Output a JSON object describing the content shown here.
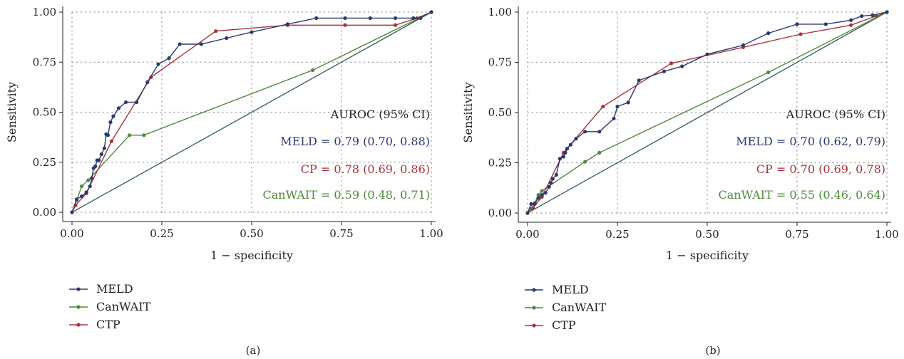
{
  "colors": {
    "MELD": "#2b3a6e",
    "CanWAIT": "#4f8a3a",
    "CTP": "#a8343a",
    "diagonal": "#2f5f5a",
    "grid": "#9a9a9a",
    "axis": "#222222"
  },
  "chart_data": [
    {
      "type": "line",
      "panel_label": "(a)",
      "xlabel": "1 − specificity",
      "ylabel": "Sensitivity",
      "xlim": [
        0,
        1
      ],
      "ylim": [
        0,
        1
      ],
      "xticks": [
        "0.00",
        "0.25",
        "0.50",
        "0.75",
        "1.00"
      ],
      "yticks": [
        "0.00",
        "0.25",
        "0.50",
        "0.75",
        "1.00"
      ],
      "grid": true,
      "reference_line": [
        [
          0,
          0
        ],
        [
          1,
          1
        ]
      ],
      "annotations": {
        "header": "AUROC (95% CI)",
        "meld": "MELD = 0.79 (0.70, 0.88)",
        "cp": "CP = 0.78 (0.69, 0.86)",
        "canwait": "CanWAIT = 0.59 (0.48, 0.71)"
      },
      "legend": [
        "MELD",
        "CanWAIT",
        "CTP"
      ],
      "legend_position": "bottom",
      "series": [
        {
          "name": "MELD",
          "points": [
            [
              0,
              0
            ],
            [
              0.013,
              0.065
            ],
            [
              0.027,
              0.08
            ],
            [
              0.04,
              0.1
            ],
            [
              0.05,
              0.13
            ],
            [
              0.055,
              0.17
            ],
            [
              0.06,
              0.22
            ],
            [
              0.065,
              0.23
            ],
            [
              0.07,
              0.26
            ],
            [
              0.075,
              0.26
            ],
            [
              0.082,
              0.29
            ],
            [
              0.09,
              0.32
            ],
            [
              0.095,
              0.39
            ],
            [
              0.1,
              0.385
            ],
            [
              0.107,
              0.45
            ],
            [
              0.115,
              0.48
            ],
            [
              0.13,
              0.52
            ],
            [
              0.15,
              0.55
            ],
            [
              0.18,
              0.55
            ],
            [
              0.21,
              0.65
            ],
            [
              0.24,
              0.74
            ],
            [
              0.27,
              0.77
            ],
            [
              0.3,
              0.84
            ],
            [
              0.36,
              0.84
            ],
            [
              0.43,
              0.87
            ],
            [
              0.5,
              0.9
            ],
            [
              0.6,
              0.94
            ],
            [
              0.68,
              0.97
            ],
            [
              0.76,
              0.97
            ],
            [
              0.83,
              0.97
            ],
            [
              0.9,
              0.97
            ],
            [
              0.95,
              0.97
            ],
            [
              0.97,
              0.97
            ],
            [
              1,
              1
            ]
          ]
        },
        {
          "name": "CanWAIT",
          "points": [
            [
              0,
              0
            ],
            [
              0.013,
              0.06
            ],
            [
              0.027,
              0.13
            ],
            [
              0.045,
              0.16
            ],
            [
              0.16,
              0.385
            ],
            [
              0.2,
              0.385
            ],
            [
              0.67,
              0.71
            ],
            [
              1,
              1
            ]
          ]
        },
        {
          "name": "CTP",
          "points": [
            [
              0,
              0
            ],
            [
              0.01,
              0.035
            ],
            [
              0.04,
              0.095
            ],
            [
              0.11,
              0.355
            ],
            [
              0.22,
              0.675
            ],
            [
              0.4,
              0.905
            ],
            [
              0.6,
              0.935
            ],
            [
              0.76,
              0.935
            ],
            [
              0.9,
              0.935
            ],
            [
              0.96,
              0.97
            ],
            [
              1,
              1
            ]
          ]
        }
      ]
    },
    {
      "type": "line",
      "panel_label": "(b)",
      "xlabel": "1 − specificity",
      "ylabel": "Sensitivity",
      "xlim": [
        0,
        1
      ],
      "ylim": [
        0,
        1
      ],
      "xticks": [
        "0.00",
        "0.25",
        "0.50",
        "0.75",
        "1.00"
      ],
      "yticks": [
        "0.00",
        "0.25",
        "0.50",
        "0.75",
        "1.00"
      ],
      "grid": true,
      "reference_line": [
        [
          0,
          0
        ],
        [
          1,
          1
        ]
      ],
      "annotations": {
        "header": "AUROC (95% CI)",
        "meld": "MELD = 0.70 (0.62, 0.79)",
        "cp": "CP = 0.70 (0.69, 0.78)",
        "canwait": "CanWAIT = 0.55 (0.46, 0.64)"
      },
      "legend": [
        "MELD",
        "CanWAIT",
        "CTP"
      ],
      "legend_position": "bottom",
      "series": [
        {
          "name": "MELD",
          "points": [
            [
              0,
              0
            ],
            [
              0.01,
              0.045
            ],
            [
              0.02,
              0.045
            ],
            [
              0.03,
              0.075
            ],
            [
              0.04,
              0.09
            ],
            [
              0.05,
              0.1
            ],
            [
              0.06,
              0.13
            ],
            [
              0.065,
              0.15
            ],
            [
              0.07,
              0.17
            ],
            [
              0.08,
              0.19
            ],
            [
              0.09,
              0.27
            ],
            [
              0.1,
              0.28
            ],
            [
              0.105,
              0.3
            ],
            [
              0.11,
              0.32
            ],
            [
              0.12,
              0.34
            ],
            [
              0.135,
              0.37
            ],
            [
              0.16,
              0.405
            ],
            [
              0.2,
              0.405
            ],
            [
              0.24,
              0.47
            ],
            [
              0.25,
              0.53
            ],
            [
              0.28,
              0.55
            ],
            [
              0.31,
              0.66
            ],
            [
              0.38,
              0.705
            ],
            [
              0.43,
              0.73
            ],
            [
              0.5,
              0.79
            ],
            [
              0.6,
              0.835
            ],
            [
              0.67,
              0.895
            ],
            [
              0.75,
              0.94
            ],
            [
              0.83,
              0.94
            ],
            [
              0.9,
              0.96
            ],
            [
              0.93,
              0.98
            ],
            [
              0.96,
              0.985
            ],
            [
              1,
              1
            ]
          ]
        },
        {
          "name": "CanWAIT",
          "points": [
            [
              0,
              0
            ],
            [
              0.01,
              0.02
            ],
            [
              0.02,
              0.05
            ],
            [
              0.03,
              0.09
            ],
            [
              0.04,
              0.11
            ],
            [
              0.16,
              0.255
            ],
            [
              0.2,
              0.3
            ],
            [
              0.67,
              0.7
            ],
            [
              1,
              1
            ]
          ]
        },
        {
          "name": "CTP",
          "points": [
            [
              0,
              0
            ],
            [
              0.015,
              0.025
            ],
            [
              0.04,
              0.08
            ],
            [
              0.1,
              0.3
            ],
            [
              0.21,
              0.53
            ],
            [
              0.4,
              0.745
            ],
            [
              0.6,
              0.825
            ],
            [
              0.76,
              0.89
            ],
            [
              0.9,
              0.935
            ],
            [
              0.97,
              0.98
            ],
            [
              1,
              1
            ]
          ]
        }
      ]
    }
  ]
}
